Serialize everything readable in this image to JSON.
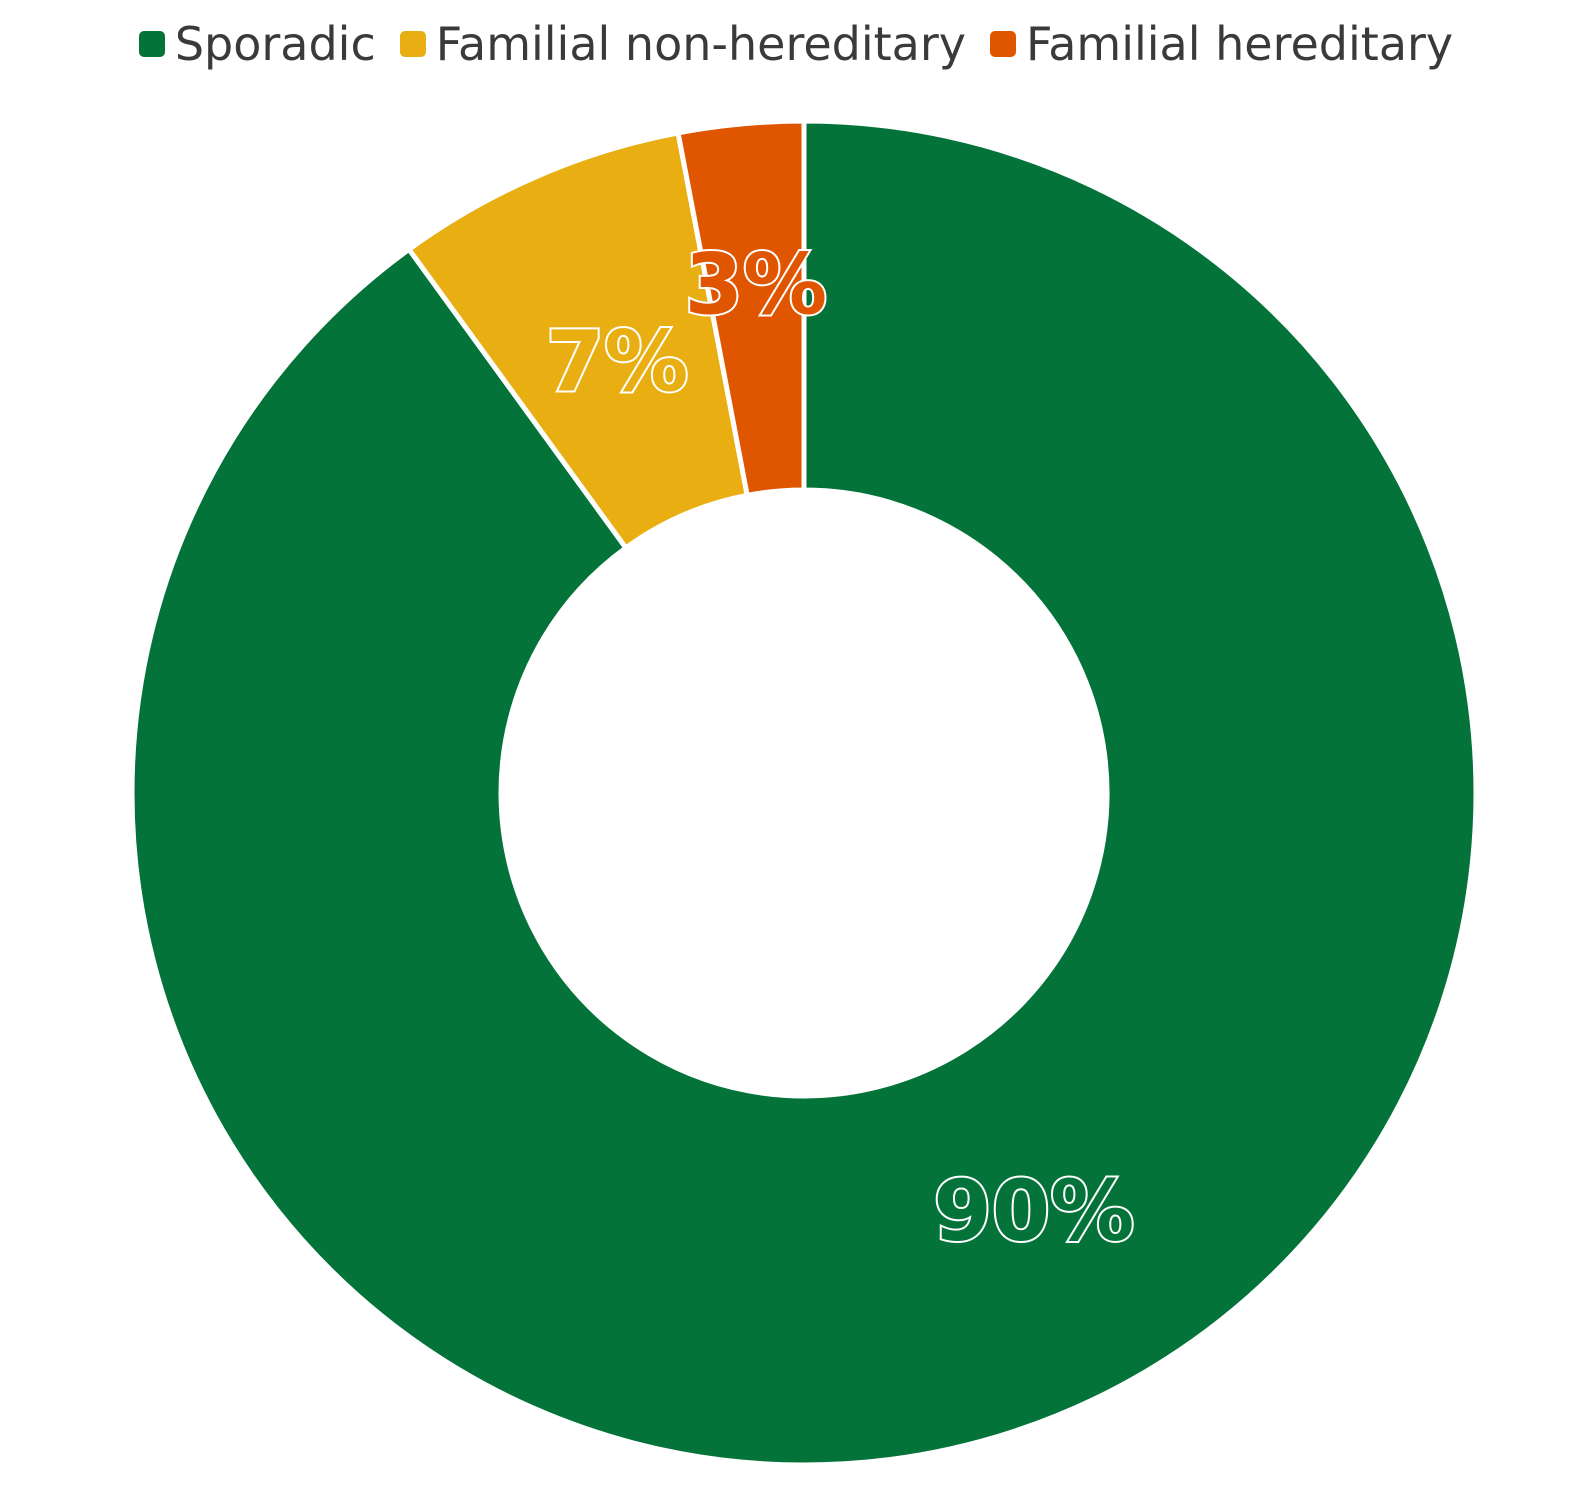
{
  "chart_data": {
    "type": "pie",
    "variant": "donut",
    "categories": [
      "Sporadic",
      "Familial non-hereditary",
      "Familial hereditary"
    ],
    "values": [
      90,
      7,
      3
    ],
    "data_labels": [
      "90%",
      "7%",
      "3%"
    ],
    "colors": [
      "#047339",
      "#E8AE12",
      "#E05500"
    ],
    "legend_position": "top"
  }
}
